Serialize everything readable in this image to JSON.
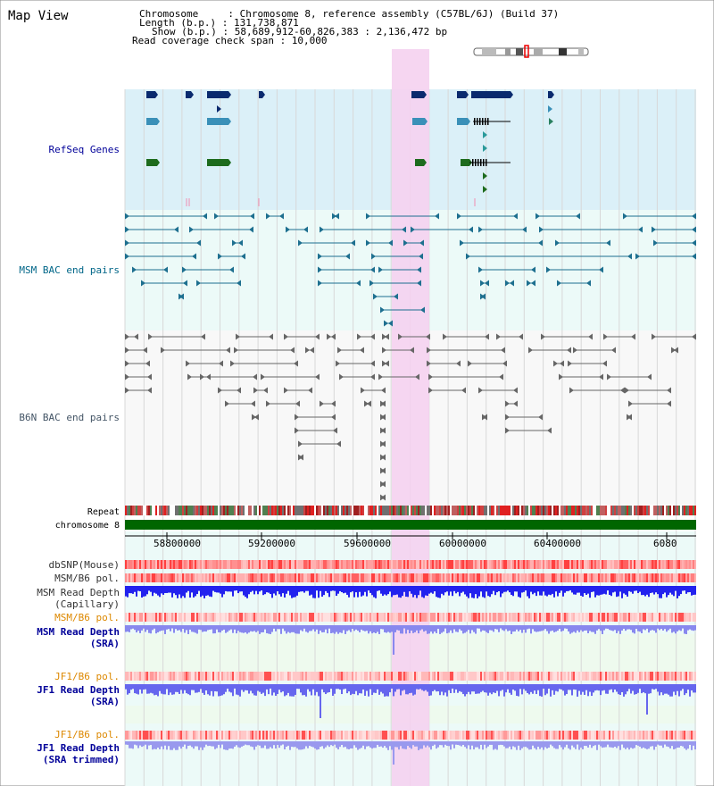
{
  "title": "Map View",
  "header": {
    "chromosome": "Chromosome     : Chromosome 8, reference assembly (C57BL/6J) (Build 37)",
    "length": "Length (b.p.) : 131,738,871",
    "show": "Show (b.p.) : 58,689,912-60,826,383 : 2,136,472 bp",
    "coverage": "Read coverage check span : 10,000"
  },
  "tracks": {
    "refseq": "RefSeq Genes",
    "msm_bac": "MSM BAC end pairs",
    "b6n_bac": "B6N BAC end pairs",
    "repeat": "Repeat",
    "chromosome": "chromosome 8",
    "dbsnp": "dbSNP(Mouse)",
    "msm_b6_pol_1": "MSM/B6 pol.",
    "msm_depth_cap_1": "MSM Read Depth",
    "msm_depth_cap_2": "(Capillary)",
    "msm_b6_pol_2": "MSM/B6 pol.",
    "msm_depth_sra_1": "MSM Read Depth",
    "msm_depth_sra_2": "(SRA)",
    "jf1_pol_1": "JF1/B6 pol.",
    "jf1_depth_sra_1": "JF1 Read Depth",
    "jf1_depth_sra_2": "(SRA)",
    "jf1_pol_2": "JF1/B6 pol.",
    "jf1_depth_trim_1": "JF1 Read Depth",
    "jf1_depth_trim_2": "(SRA trimmed)"
  },
  "axis": {
    "ticks": [
      "58800000",
      "59200000",
      "59600000",
      "60000000",
      "60400000",
      "6080"
    ]
  },
  "colors": {
    "refseq_bg": "#dbf0f8",
    "bac_bg": "#ecfaf8",
    "highlight": "#f5d2f0",
    "label_navy": "#000099",
    "label_teal": "#006688",
    "label_gray": "#445566",
    "label_orange": "#dd8800",
    "chromosome_bar": "#006600"
  }
}
